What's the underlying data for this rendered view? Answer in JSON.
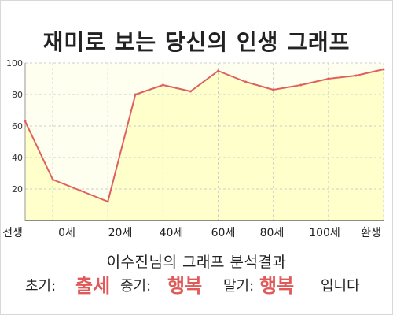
{
  "chart_data": {
    "type": "area",
    "title": "재미로 보는 당신의 인생 그래프",
    "x": [
      "전생",
      "0세",
      "",
      "20세",
      "",
      "40세",
      "",
      "60세",
      "",
      "80세",
      "",
      "100세",
      "",
      "환생"
    ],
    "values": [
      63,
      26,
      null,
      12,
      80,
      86,
      82,
      95,
      88,
      83,
      86,
      90,
      92,
      96
    ],
    "categories": [
      "전생",
      "0세",
      "20세",
      "40세",
      "60세",
      "80세",
      "100세",
      "환생"
    ],
    "ylim": [
      0,
      100
    ],
    "yticks": [
      "20",
      "40",
      "60",
      "80",
      "100"
    ],
    "grid": true,
    "line_color": "#e06060",
    "fill_color": "#ffffcc"
  },
  "summary": {
    "subtitle": "이수진님의 그래프 분석결과",
    "early_label": "초기:",
    "early_value": "출세",
    "middle_label": "중기:",
    "middle_value": "행복",
    "late_label": "말기:",
    "late_value": "행복",
    "ending": "입니다"
  },
  "colors": {
    "highlight": "#e05a5a",
    "grid": "#cccccc",
    "plot_background": "#fffff0"
  }
}
